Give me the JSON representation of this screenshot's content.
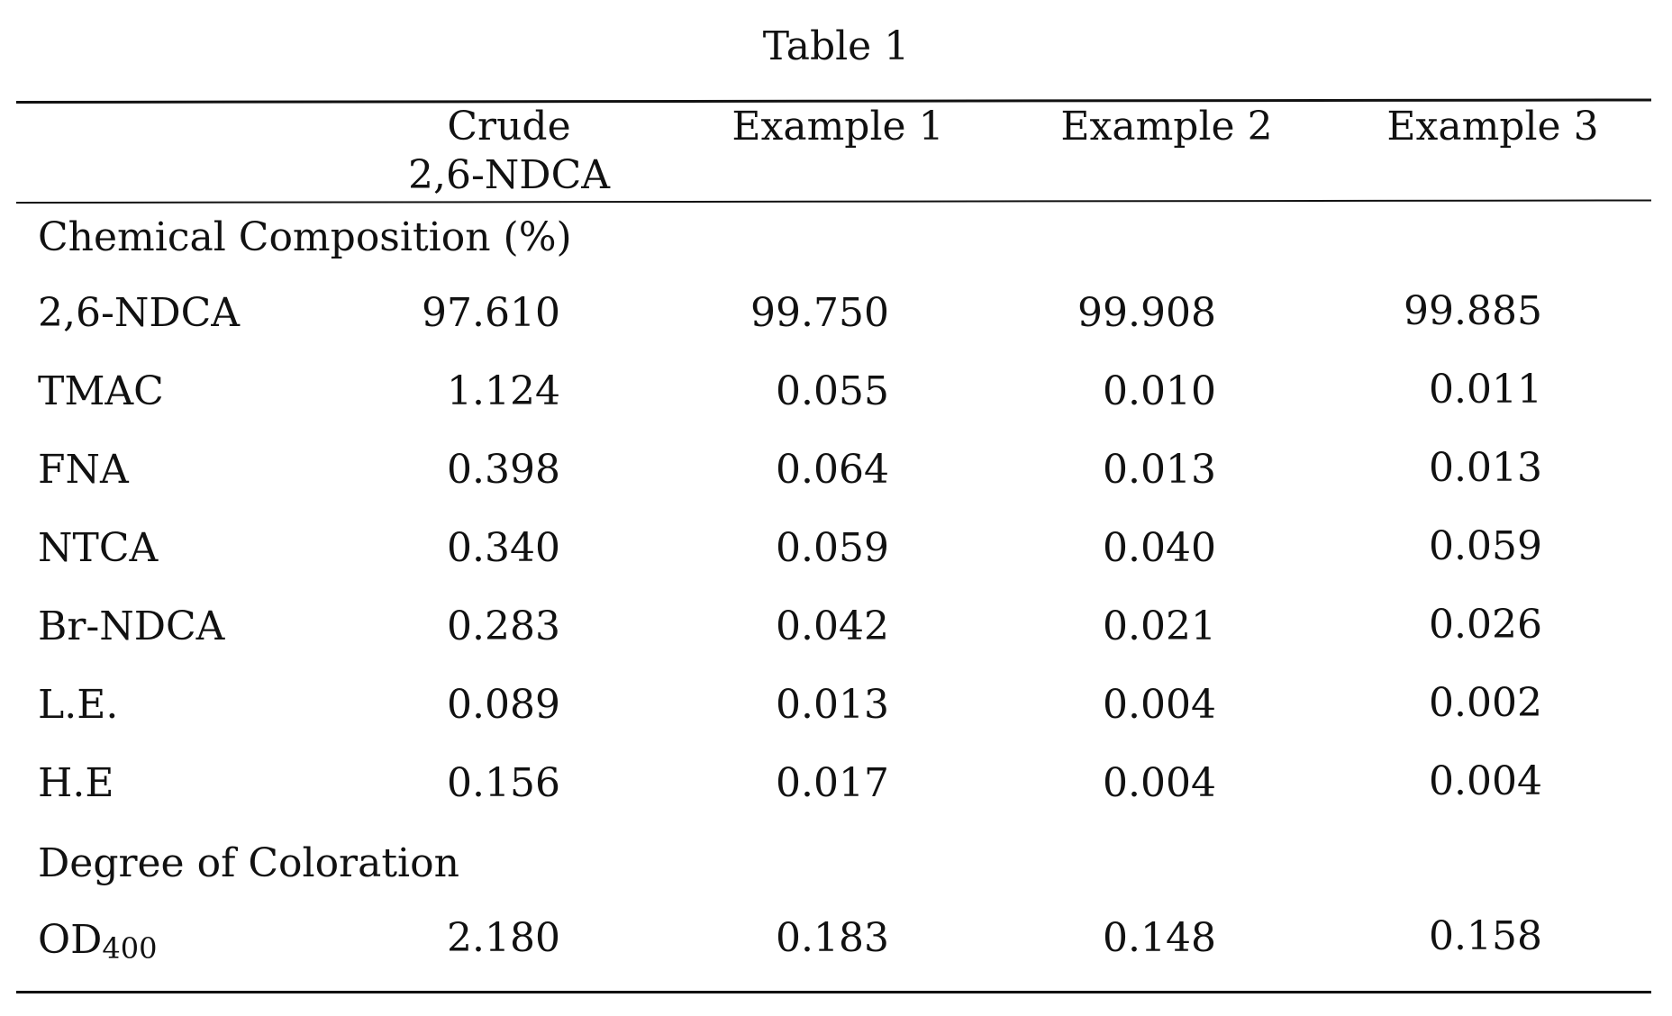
{
  "table": {
    "title": "Table 1",
    "columns": [
      {
        "line1": "Crude",
        "line2": "2,6-NDCA"
      },
      {
        "line1": "Example 1",
        "line2": ""
      },
      {
        "line1": "Example 2",
        "line2": ""
      },
      {
        "line1": "Example 3",
        "line2": ""
      }
    ],
    "sections": [
      {
        "label": "Chemical Composition (%)",
        "rows": [
          {
            "label": "2,6-NDCA",
            "values": [
              "97.610",
              "99.750",
              "99.908",
              "99.885"
            ]
          },
          {
            "label": "TMAC",
            "values": [
              "1.124",
              "0.055",
              "0.010",
              "0.011"
            ]
          },
          {
            "label": "FNA",
            "values": [
              "0.398",
              "0.064",
              "0.013",
              "0.013"
            ]
          },
          {
            "label": "NTCA",
            "values": [
              "0.340",
              "0.059",
              "0.040",
              "0.059"
            ]
          },
          {
            "label": "Br-NDCA",
            "values": [
              "0.283",
              "0.042",
              "0.021",
              "0.026"
            ]
          },
          {
            "label": "L.E.",
            "values": [
              "0.089",
              "0.013",
              "0.004",
              "0.002"
            ]
          },
          {
            "label": "H.E",
            "values": [
              "0.156",
              "0.017",
              "0.004",
              "0.004"
            ]
          }
        ]
      },
      {
        "label": "Degree of Coloration",
        "rows": [
          {
            "label": "OD",
            "label_sub": "400",
            "values": [
              "2.180",
              "0.183",
              "0.148",
              "0.158"
            ]
          }
        ]
      }
    ]
  }
}
